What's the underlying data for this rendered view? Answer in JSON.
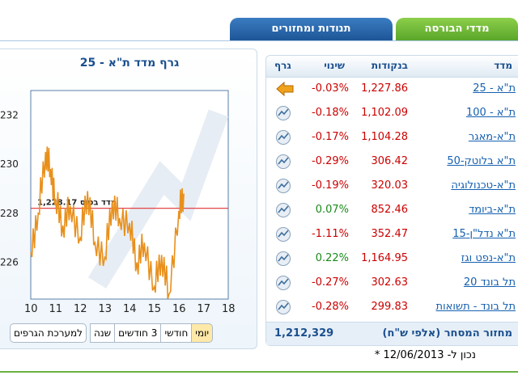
{
  "tabs": {
    "indices": "מדדי הבורסה",
    "volume": "תנודות ומחזורים"
  },
  "chart": {
    "title": "גרף מדד ת\"א - 25",
    "y_ticks": [
      "232",
      "230",
      "228",
      "226"
    ],
    "x_ticks": [
      "10",
      "11",
      "12",
      "13",
      "14",
      "15",
      "16",
      "17",
      "18"
    ],
    "base_label": "מדד בסיס 1,228.17",
    "line_color": "#e8901c",
    "base_color": "#e03030"
  },
  "chart_data": {
    "type": "line",
    "title": "גרף מדד ת\"א - 25",
    "x": [
      10.0,
      10.3,
      10.6,
      10.8,
      11.0,
      11.3,
      11.6,
      12.0,
      12.3,
      12.6,
      13.0,
      13.3,
      13.6,
      14.0,
      14.3,
      14.6,
      15.0,
      15.3,
      15.6,
      16.0,
      16.2
    ],
    "values": [
      226.4,
      228.0,
      230.5,
      229.8,
      228.6,
      227.5,
      228.3,
      227.0,
      228.9,
      226.8,
      226.2,
      228.5,
      227.8,
      227.6,
      226.0,
      226.8,
      225.0,
      226.3,
      224.7,
      228.1,
      228.8
    ],
    "base_value": 1228.17,
    "xlim": [
      10,
      18
    ],
    "ylim": [
      224.5,
      233
    ],
    "grid": false
  },
  "range_buttons": [
    "יומי",
    "חודשי",
    "3 חודשים",
    "שנה",
    "למערכת הגרפים"
  ],
  "table": {
    "headers": {
      "name": "מדד",
      "points": "בנקודות",
      "change": "שינוי",
      "graph": "גרף"
    },
    "rows": [
      {
        "name": "ת\"א - 25",
        "points": "1,227.86",
        "change": "-0.03%",
        "dir": "neg",
        "icon": "arrow-left-icon"
      },
      {
        "name": "ת\"א - 100",
        "points": "1,102.09",
        "change": "-0.18%",
        "dir": "neg",
        "icon": "chart-icon"
      },
      {
        "name": "ת\"א-מאגר",
        "points": "1,104.28",
        "change": "-0.17%",
        "dir": "neg",
        "icon": "chart-icon"
      },
      {
        "name": "ת\"א בלוטק-50",
        "points": "306.42",
        "change": "-0.29%",
        "dir": "neg",
        "icon": "chart-icon"
      },
      {
        "name": "ת\"א-טכנולוגיה",
        "points": "320.03",
        "change": "-0.19%",
        "dir": "neg",
        "icon": "chart-icon"
      },
      {
        "name": "ת\"א-ביומד",
        "points": "852.46",
        "change": "0.07%",
        "dir": "pos",
        "icon": "chart-icon"
      },
      {
        "name": "ת\"א נדל\"ן-15",
        "points": "352.47",
        "change": "-1.11%",
        "dir": "neg",
        "icon": "chart-icon"
      },
      {
        "name": "ת\"א-נפט וגז",
        "points": "1,164.95",
        "change": "0.22%",
        "dir": "pos",
        "icon": "chart-icon"
      },
      {
        "name": "תל בונד 20",
        "points": "302.63",
        "change": "-0.27%",
        "dir": "neg",
        "icon": "chart-icon"
      },
      {
        "name": "תל בונד - תשואות",
        "points": "299.83",
        "change": "-0.28%",
        "dir": "neg",
        "icon": "chart-icon"
      }
    ],
    "footer": {
      "label": "מחזור המסחר (אלפי ש\"ח)",
      "value": "1,212,329"
    }
  },
  "updated": "* נכון ל- 12/06/2013"
}
